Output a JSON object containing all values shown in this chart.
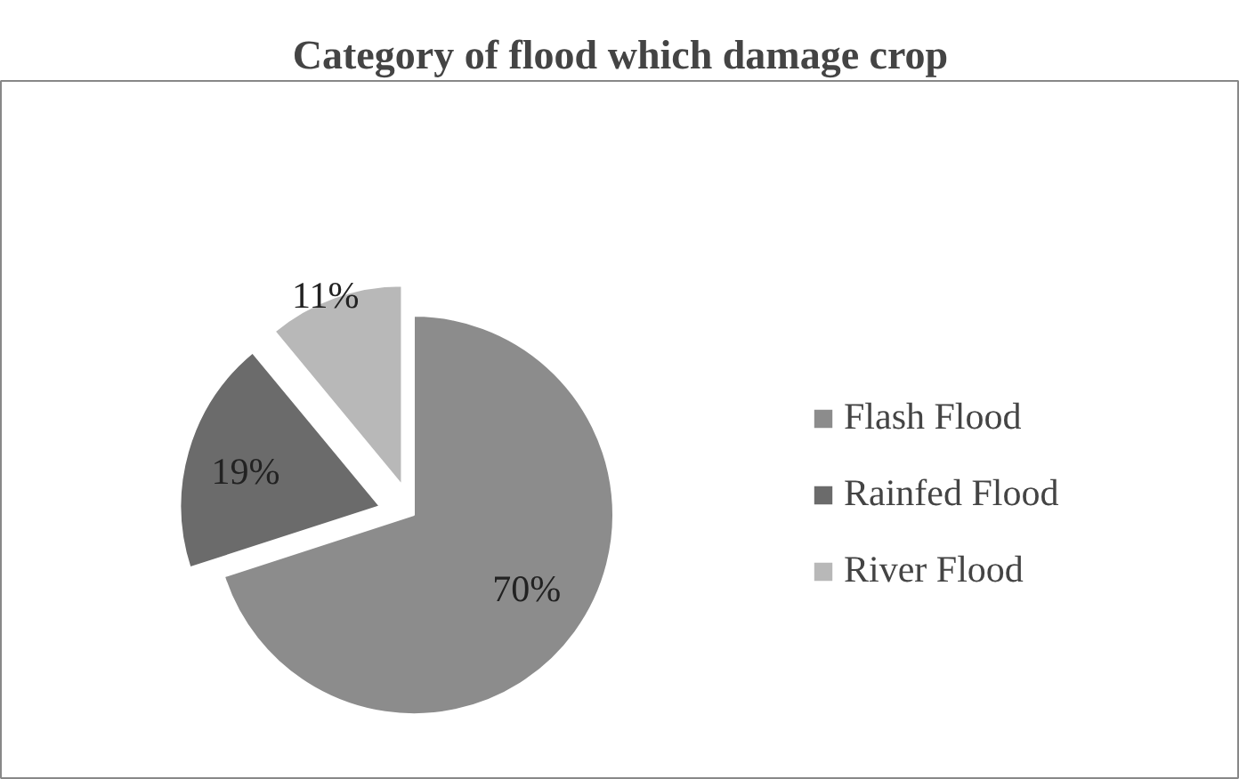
{
  "chart_data": {
    "type": "pie",
    "title": "Category of flood which damage crop",
    "categories": [
      "Flash Flood",
      "Rainfed Flood",
      "River Flood"
    ],
    "values": [
      70,
      19,
      11
    ],
    "value_labels": [
      "70%",
      "19%",
      "11%"
    ],
    "colors": [
      "#8c8c8c",
      "#6b6b6b",
      "#b8b8b8"
    ],
    "legend": "right"
  }
}
